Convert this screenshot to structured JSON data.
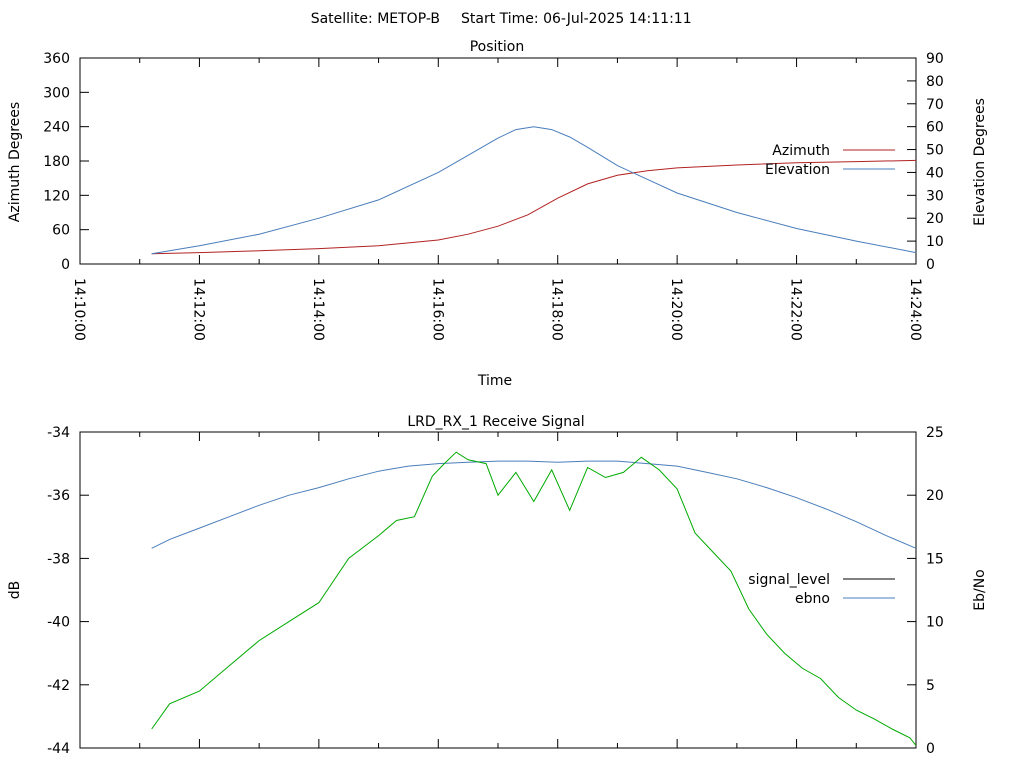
{
  "header": {
    "satellite": "Satellite: METOP-B",
    "start_time": "Start Time: 06-Jul-2025 14:11:11"
  },
  "chart_data": [
    {
      "type": "line",
      "title": "Position",
      "xlabel": "Time",
      "ylabel": "Azimuth Degrees",
      "y2label": "Elevation Degrees",
      "x_range_minutes": [
        0,
        14
      ],
      "x_ticks": [
        {
          "v": 0,
          "label": "14:10:00"
        },
        {
          "v": 2,
          "label": "14:12:00"
        },
        {
          "v": 4,
          "label": "14:14:00"
        },
        {
          "v": 6,
          "label": "14:16:00"
        },
        {
          "v": 8,
          "label": "14:18:00"
        },
        {
          "v": 10,
          "label": "14:20:00"
        },
        {
          "v": 12,
          "label": "14:22:00"
        },
        {
          "v": 14,
          "label": "14:24:00"
        }
      ],
      "ylim": [
        0,
        360
      ],
      "y_ticks": [
        "0",
        "60",
        "120",
        "180",
        "240",
        "300",
        "360"
      ],
      "y2lim": [
        0,
        90
      ],
      "y2_ticks": [
        "0",
        "10",
        "20",
        "30",
        "40",
        "50",
        "60",
        "70",
        "80",
        "90"
      ],
      "legend_position": "right",
      "series": [
        {
          "name": "Azimuth",
          "axis": "y",
          "color": "#b22222",
          "x": [
            1.2,
            2.0,
            3.0,
            4.0,
            5.0,
            6.0,
            6.5,
            7.0,
            7.5,
            8.0,
            8.5,
            9.0,
            9.5,
            10.0,
            11.0,
            12.0,
            13.0,
            14.0
          ],
          "y": [
            18,
            20,
            23,
            27,
            32,
            42,
            52,
            66,
            86,
            115,
            140,
            155,
            163,
            168,
            173,
            177,
            179,
            181
          ]
        },
        {
          "name": "Elevation",
          "axis": "y2",
          "color": "#4a7ebb",
          "x": [
            1.2,
            2.0,
            3.0,
            4.0,
            5.0,
            6.0,
            6.5,
            7.0,
            7.3,
            7.6,
            7.9,
            8.2,
            8.5,
            9.0,
            9.5,
            10.0,
            11.0,
            12.0,
            13.0,
            14.0
          ],
          "y": [
            4.5,
            8,
            13,
            20,
            28,
            40,
            47.5,
            55,
            58.7,
            60,
            58.7,
            55.5,
            51,
            43,
            37,
            31,
            22.5,
            15.5,
            10,
            5
          ]
        }
      ]
    },
    {
      "type": "line",
      "title": "LRD_RX_1 Receive Signal",
      "ylabel": "dB",
      "y2label": "Eb/No",
      "x_range_minutes": [
        0,
        14
      ],
      "ylim": [
        -44,
        -34
      ],
      "y_ticks": [
        "-44",
        "-42",
        "-40",
        "-38",
        "-36",
        "-34"
      ],
      "y2lim": [
        0,
        25
      ],
      "y2_ticks": [
        "0",
        "5",
        "10",
        "15",
        "20",
        "25"
      ],
      "legend_position": "right",
      "series": [
        {
          "name": "signal_level",
          "axis": "y",
          "color": "#000000",
          "x": [],
          "y": []
        },
        {
          "name": "ebno",
          "axis": "y2",
          "color": "#4a7ebb",
          "x": [
            1.2,
            1.5,
            2.0,
            2.5,
            3.0,
            3.5,
            4.0,
            4.5,
            5.0,
            5.5,
            6.0,
            6.5,
            7.0,
            7.5,
            8.0,
            8.5,
            9.0,
            9.5,
            10.0,
            10.5,
            11.0,
            11.5,
            12.0,
            12.5,
            13.0,
            13.5,
            14.0
          ],
          "y": [
            15.8,
            16.5,
            17.4,
            18.3,
            19.2,
            20.0,
            20.6,
            21.3,
            21.9,
            22.3,
            22.5,
            22.6,
            22.7,
            22.7,
            22.6,
            22.7,
            22.7,
            22.5,
            22.3,
            21.8,
            21.3,
            20.6,
            19.8,
            18.9,
            17.9,
            16.8,
            15.8
          ]
        },
        {
          "name": "",
          "axis": "y2",
          "color": "#00aa00",
          "x": [
            1.2,
            1.5,
            2.0,
            2.5,
            3.0,
            3.5,
            4.0,
            4.5,
            5.0,
            5.3,
            5.6,
            5.9,
            6.1,
            6.3,
            6.5,
            6.8,
            7.0,
            7.3,
            7.6,
            7.9,
            8.2,
            8.5,
            8.8,
            9.1,
            9.4,
            9.7,
            10.0,
            10.3,
            10.6,
            10.9,
            11.2,
            11.5,
            11.8,
            12.1,
            12.4,
            12.7,
            13.0,
            13.3,
            13.6,
            13.9,
            14.0
          ],
          "y": [
            1.5,
            3.5,
            4.5,
            6.5,
            8.5,
            10.0,
            11.5,
            15.0,
            16.8,
            18.0,
            18.3,
            21.5,
            22.5,
            23.4,
            22.8,
            22.5,
            20.0,
            21.8,
            19.5,
            22.0,
            18.8,
            22.2,
            21.4,
            21.8,
            23.0,
            22.0,
            20.5,
            17.0,
            15.5,
            14.0,
            11.0,
            9.0,
            7.5,
            6.3,
            5.5,
            4.0,
            3.0,
            2.3,
            1.5,
            0.8,
            0.2
          ]
        }
      ]
    }
  ]
}
